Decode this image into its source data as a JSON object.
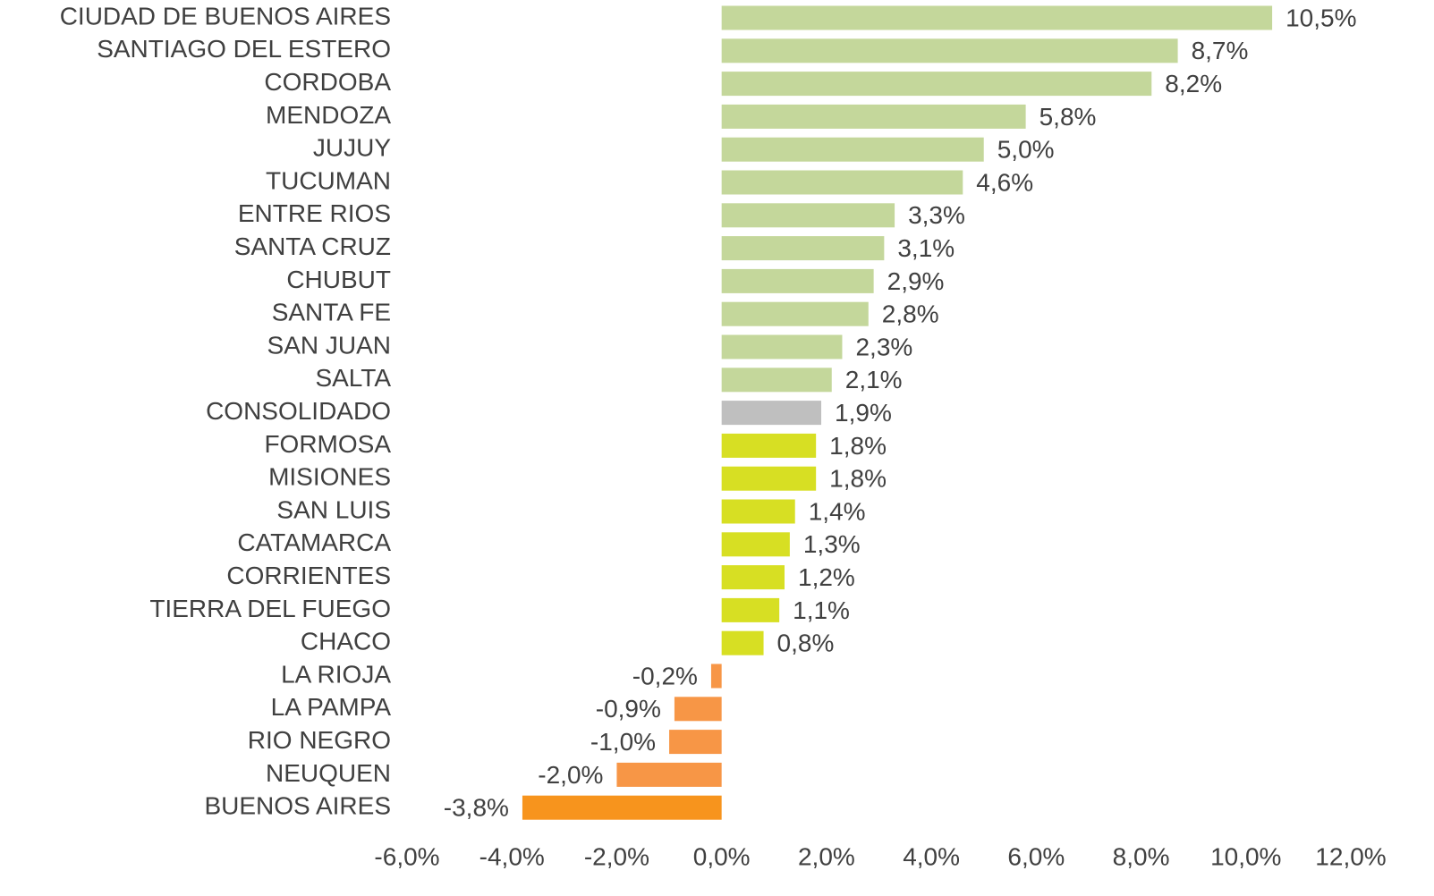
{
  "chart_data": {
    "type": "bar",
    "orientation": "horizontal",
    "categories": [
      "CIUDAD DE BUENOS AIRES",
      "SANTIAGO DEL ESTERO",
      "CORDOBA",
      "MENDOZA",
      "JUJUY",
      "TUCUMAN",
      "ENTRE RIOS",
      "SANTA CRUZ",
      "CHUBUT",
      "SANTA FE",
      "SAN JUAN",
      "SALTA",
      "CONSOLIDADO",
      "FORMOSA",
      "MISIONES",
      "SAN LUIS",
      "CATAMARCA",
      "CORRIENTES",
      "TIERRA DEL FUEGO",
      "CHACO",
      "LA RIOJA",
      "LA PAMPA",
      "RIO NEGRO",
      "NEUQUEN",
      "BUENOS AIRES"
    ],
    "values": [
      10.5,
      8.7,
      8.2,
      5.8,
      5.0,
      4.6,
      3.3,
      3.1,
      2.9,
      2.8,
      2.3,
      2.1,
      1.9,
      1.8,
      1.8,
      1.4,
      1.3,
      1.2,
      1.1,
      0.8,
      -0.2,
      -0.9,
      -1.0,
      -2.0,
      -3.8
    ],
    "value_labels": [
      "10,5%",
      "8,7%",
      "8,2%",
      "5,8%",
      "5,0%",
      "4,6%",
      "3,3%",
      "3,1%",
      "2,9%",
      "2,8%",
      "2,3%",
      "2,1%",
      "1,9%",
      "1,8%",
      "1,8%",
      "1,4%",
      "1,3%",
      "1,2%",
      "1,1%",
      "0,8%",
      "-0,2%",
      "-0,9%",
      "-1,0%",
      "-2,0%",
      "-3,8%"
    ],
    "colors": [
      "#c4d79b",
      "#c4d79b",
      "#c4d79b",
      "#c4d79b",
      "#c4d79b",
      "#c4d79b",
      "#c4d79b",
      "#c4d79b",
      "#c4d79b",
      "#c4d79b",
      "#c4d79b",
      "#c4d79b",
      "#bfbfbf",
      "#d7df23",
      "#d7df23",
      "#d7df23",
      "#d7df23",
      "#d7df23",
      "#d7df23",
      "#d7df23",
      "#f79646",
      "#f79646",
      "#f79646",
      "#f79646",
      "#f7941d"
    ],
    "xlim": [
      -6,
      12
    ],
    "xticks": [
      {
        "value": -6,
        "label": "-6,0%"
      },
      {
        "value": -4,
        "label": "-4,0%"
      },
      {
        "value": -2,
        "label": "-2,0%"
      },
      {
        "value": 0,
        "label": "0,0%"
      },
      {
        "value": 2,
        "label": "2,0%"
      },
      {
        "value": 4,
        "label": "4,0%"
      },
      {
        "value": 6,
        "label": "6,0%"
      },
      {
        "value": 8,
        "label": "8,0%"
      },
      {
        "value": 10,
        "label": "10,0%"
      },
      {
        "value": 12,
        "label": "12,0%"
      }
    ],
    "grid": false
  }
}
